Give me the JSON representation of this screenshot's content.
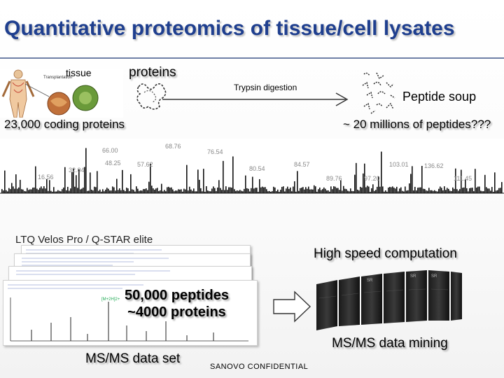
{
  "slide": {
    "title": "Quantitative proteomics of tissue/cell lysates",
    "tissue_label": "tissue",
    "proteins_label": "proteins",
    "coding_proteins": "23,000 coding proteins",
    "trypsin_label": "Trypsin digestion",
    "peptide_soup": "Peptide soup",
    "peptide_count": "~ 20 millions of peptides???",
    "instrument": "LTQ Velos Pro / Q-STAR elite",
    "computation": "High speed computation",
    "stats_line1": "50,000 peptides",
    "stats_line2": "~4000 proteins",
    "msms_set": "MS/MS data set",
    "msms_mining": "MS/MS data mining",
    "confidential": "SANOVO CONFIDENTIAL"
  },
  "colors": {
    "title": "#1f3f8f",
    "rule": "#6f7fa6"
  },
  "icons": [
    "tissue-illustration-icon",
    "protein-fold-icon",
    "peptide-fragments-icon",
    "mass-spectrum-icon",
    "server-rack-icon",
    "arrow-right-icon"
  ]
}
